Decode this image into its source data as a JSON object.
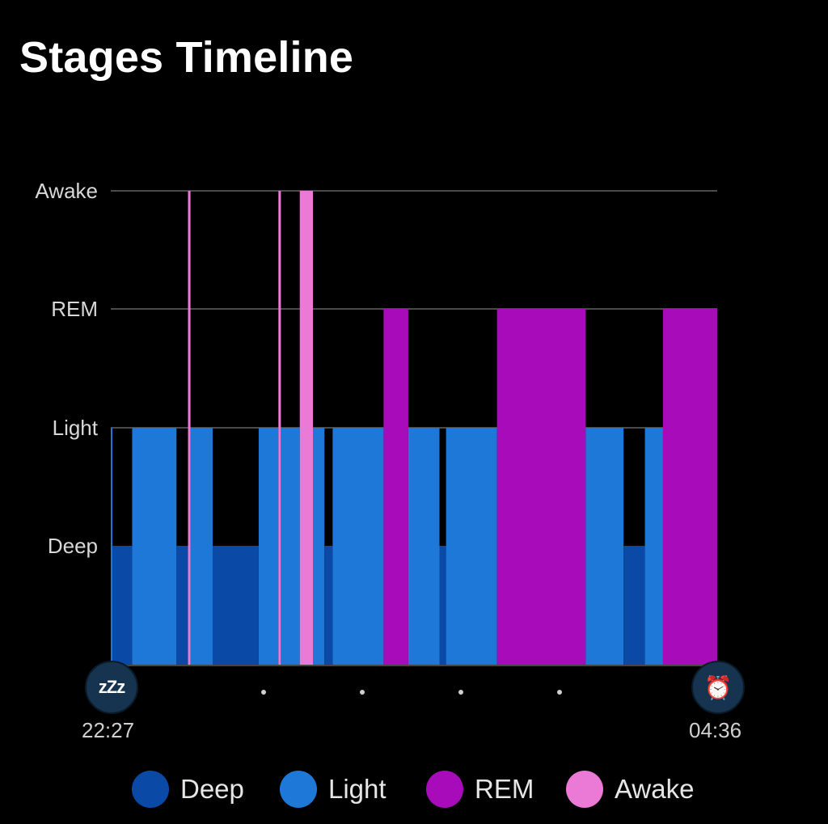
{
  "title": "Stages Timeline",
  "chart_data": {
    "type": "step-area",
    "y_categories": [
      "Deep",
      "Light",
      "REM",
      "Awake"
    ],
    "start_time": "22:27",
    "end_time": "04:36",
    "x_unit": "minutes since sleep start",
    "x_range": [
      0,
      369
    ],
    "grid": true,
    "legend": "bottom",
    "colors": {
      "Deep": "#0a4aa6",
      "Light": "#1e78d8",
      "REM": "#a80cba",
      "Awake": "#ea7ad6"
    },
    "segments": [
      {
        "start": 0.0,
        "end": 1.0,
        "stage": "Light"
      },
      {
        "start": 1.0,
        "end": 13.0,
        "stage": "Deep"
      },
      {
        "start": 13.0,
        "end": 40.0,
        "stage": "Light"
      },
      {
        "start": 40.0,
        "end": 47.0,
        "stage": "Deep"
      },
      {
        "start": 47.0,
        "end": 48.5,
        "stage": "Awake"
      },
      {
        "start": 48.5,
        "end": 62.0,
        "stage": "Light"
      },
      {
        "start": 62.0,
        "end": 90.0,
        "stage": "Deep"
      },
      {
        "start": 90.0,
        "end": 102.0,
        "stage": "Light"
      },
      {
        "start": 102.0,
        "end": 103.5,
        "stage": "Awake"
      },
      {
        "start": 103.5,
        "end": 115.0,
        "stage": "Light"
      },
      {
        "start": 115.0,
        "end": 123.0,
        "stage": "Awake"
      },
      {
        "start": 123.0,
        "end": 130.0,
        "stage": "Light"
      },
      {
        "start": 130.0,
        "end": 135.0,
        "stage": "Deep"
      },
      {
        "start": 135.0,
        "end": 166.0,
        "stage": "Light"
      },
      {
        "start": 166.0,
        "end": 181.0,
        "stage": "REM"
      },
      {
        "start": 181.0,
        "end": 200.0,
        "stage": "Light"
      },
      {
        "start": 200.0,
        "end": 204.0,
        "stage": "Deep"
      },
      {
        "start": 204.0,
        "end": 235.0,
        "stage": "Light"
      },
      {
        "start": 235.0,
        "end": 289.0,
        "stage": "REM"
      },
      {
        "start": 289.0,
        "end": 312.0,
        "stage": "Light"
      },
      {
        "start": 312.0,
        "end": 325.0,
        "stage": "Deep"
      },
      {
        "start": 325.0,
        "end": 336.0,
        "stage": "Light"
      },
      {
        "start": 336.0,
        "end": 369.0,
        "stage": "REM"
      }
    ]
  },
  "markers": {
    "start_icon": "sleep-zzz-icon",
    "start_glyph": "zZz",
    "end_icon": "alarm-clock-icon",
    "end_glyph": "⏰"
  },
  "legend": [
    {
      "label": "Deep",
      "color": "#0a4aa6"
    },
    {
      "label": "Light",
      "color": "#1e78d8"
    },
    {
      "label": "REM",
      "color": "#a80cba"
    },
    {
      "label": "Awake",
      "color": "#ea7ad6"
    }
  ]
}
